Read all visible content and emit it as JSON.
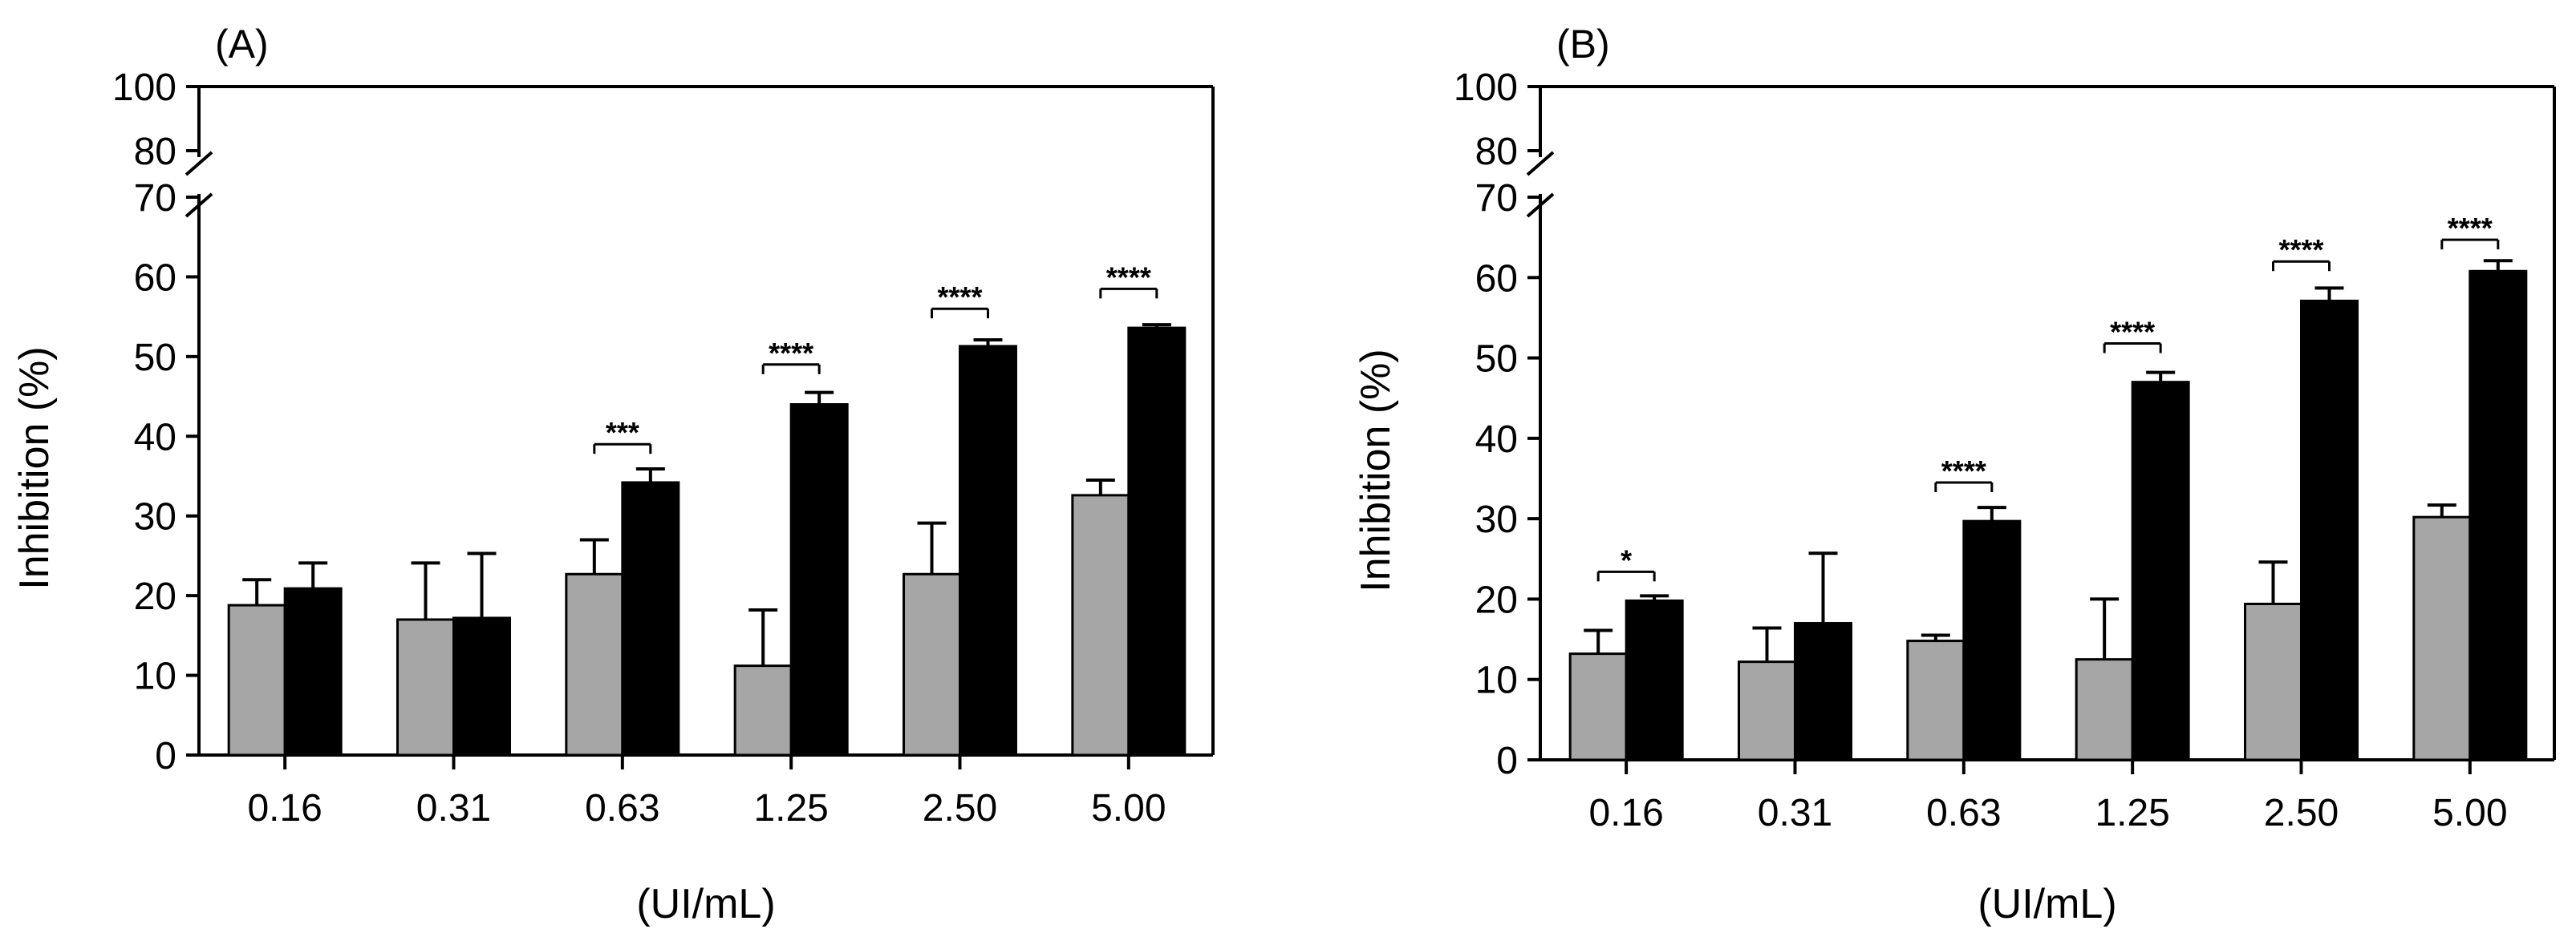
{
  "chart_data": [
    {
      "type": "bar",
      "panel_label": "(A)",
      "xlabel": "(UI/mL)",
      "ylabel": "Inhibition (%)",
      "categories": [
        "0.16",
        "0.31",
        "0.63",
        "1.25",
        "2.50",
        "5.00"
      ],
      "series": [
        {
          "name": "gray",
          "color": "#a6a6a6",
          "values": [
            18.8,
            17.0,
            22.7,
            11.2,
            22.7,
            32.6
          ],
          "errors": [
            3.2,
            7.1,
            4.3,
            7.0,
            6.4,
            1.9
          ]
        },
        {
          "name": "black",
          "color": "#000000",
          "values": [
            20.9,
            17.2,
            34.2,
            44.0,
            51.3,
            53.6
          ],
          "errors": [
            3.2,
            8.1,
            1.7,
            1.5,
            0.8,
            0.4
          ]
        }
      ],
      "ylim": [
        0,
        100
      ],
      "y_break": [
        70,
        80
      ],
      "yticks": [
        "0",
        "10",
        "20",
        "30",
        "40",
        "50",
        "60",
        "70",
        "80",
        "100"
      ],
      "significance": [
        {
          "index": 2,
          "label": "***",
          "y": 39
        },
        {
          "index": 3,
          "label": "****",
          "y": 49
        },
        {
          "index": 4,
          "label": "****",
          "y": 56
        },
        {
          "index": 5,
          "label": "****",
          "y": 58.5
        }
      ]
    },
    {
      "type": "bar",
      "panel_label": "(B)",
      "xlabel": "(UI/mL)",
      "ylabel": "Inhibition (%)",
      "categories": [
        "0.16",
        "0.31",
        "0.63",
        "1.25",
        "2.50",
        "5.00"
      ],
      "series": [
        {
          "name": "gray",
          "color": "#a6a6a6",
          "values": [
            13.2,
            12.2,
            14.8,
            12.5,
            19.4,
            30.2
          ],
          "errors": [
            2.9,
            4.2,
            0.7,
            7.5,
            5.2,
            1.5
          ]
        },
        {
          "name": "black",
          "color": "#000000",
          "values": [
            19.8,
            17.0,
            29.7,
            47.0,
            57.1,
            60.8
          ],
          "errors": [
            0.6,
            8.7,
            1.7,
            1.2,
            1.6,
            1.3
          ]
        }
      ],
      "ylim": [
        0,
        100
      ],
      "y_break": [
        70,
        80
      ],
      "yticks": [
        "0",
        "10",
        "20",
        "30",
        "40",
        "50",
        "60",
        "70",
        "80",
        "100"
      ],
      "significance": [
        {
          "index": 0,
          "label": "*",
          "y": 23.4
        },
        {
          "index": 2,
          "label": "****",
          "y": 34.5
        },
        {
          "index": 3,
          "label": "****",
          "y": 51.8
        },
        {
          "index": 4,
          "label": "****",
          "y": 62
        },
        {
          "index": 5,
          "label": "****",
          "y": 64.7
        }
      ]
    }
  ]
}
